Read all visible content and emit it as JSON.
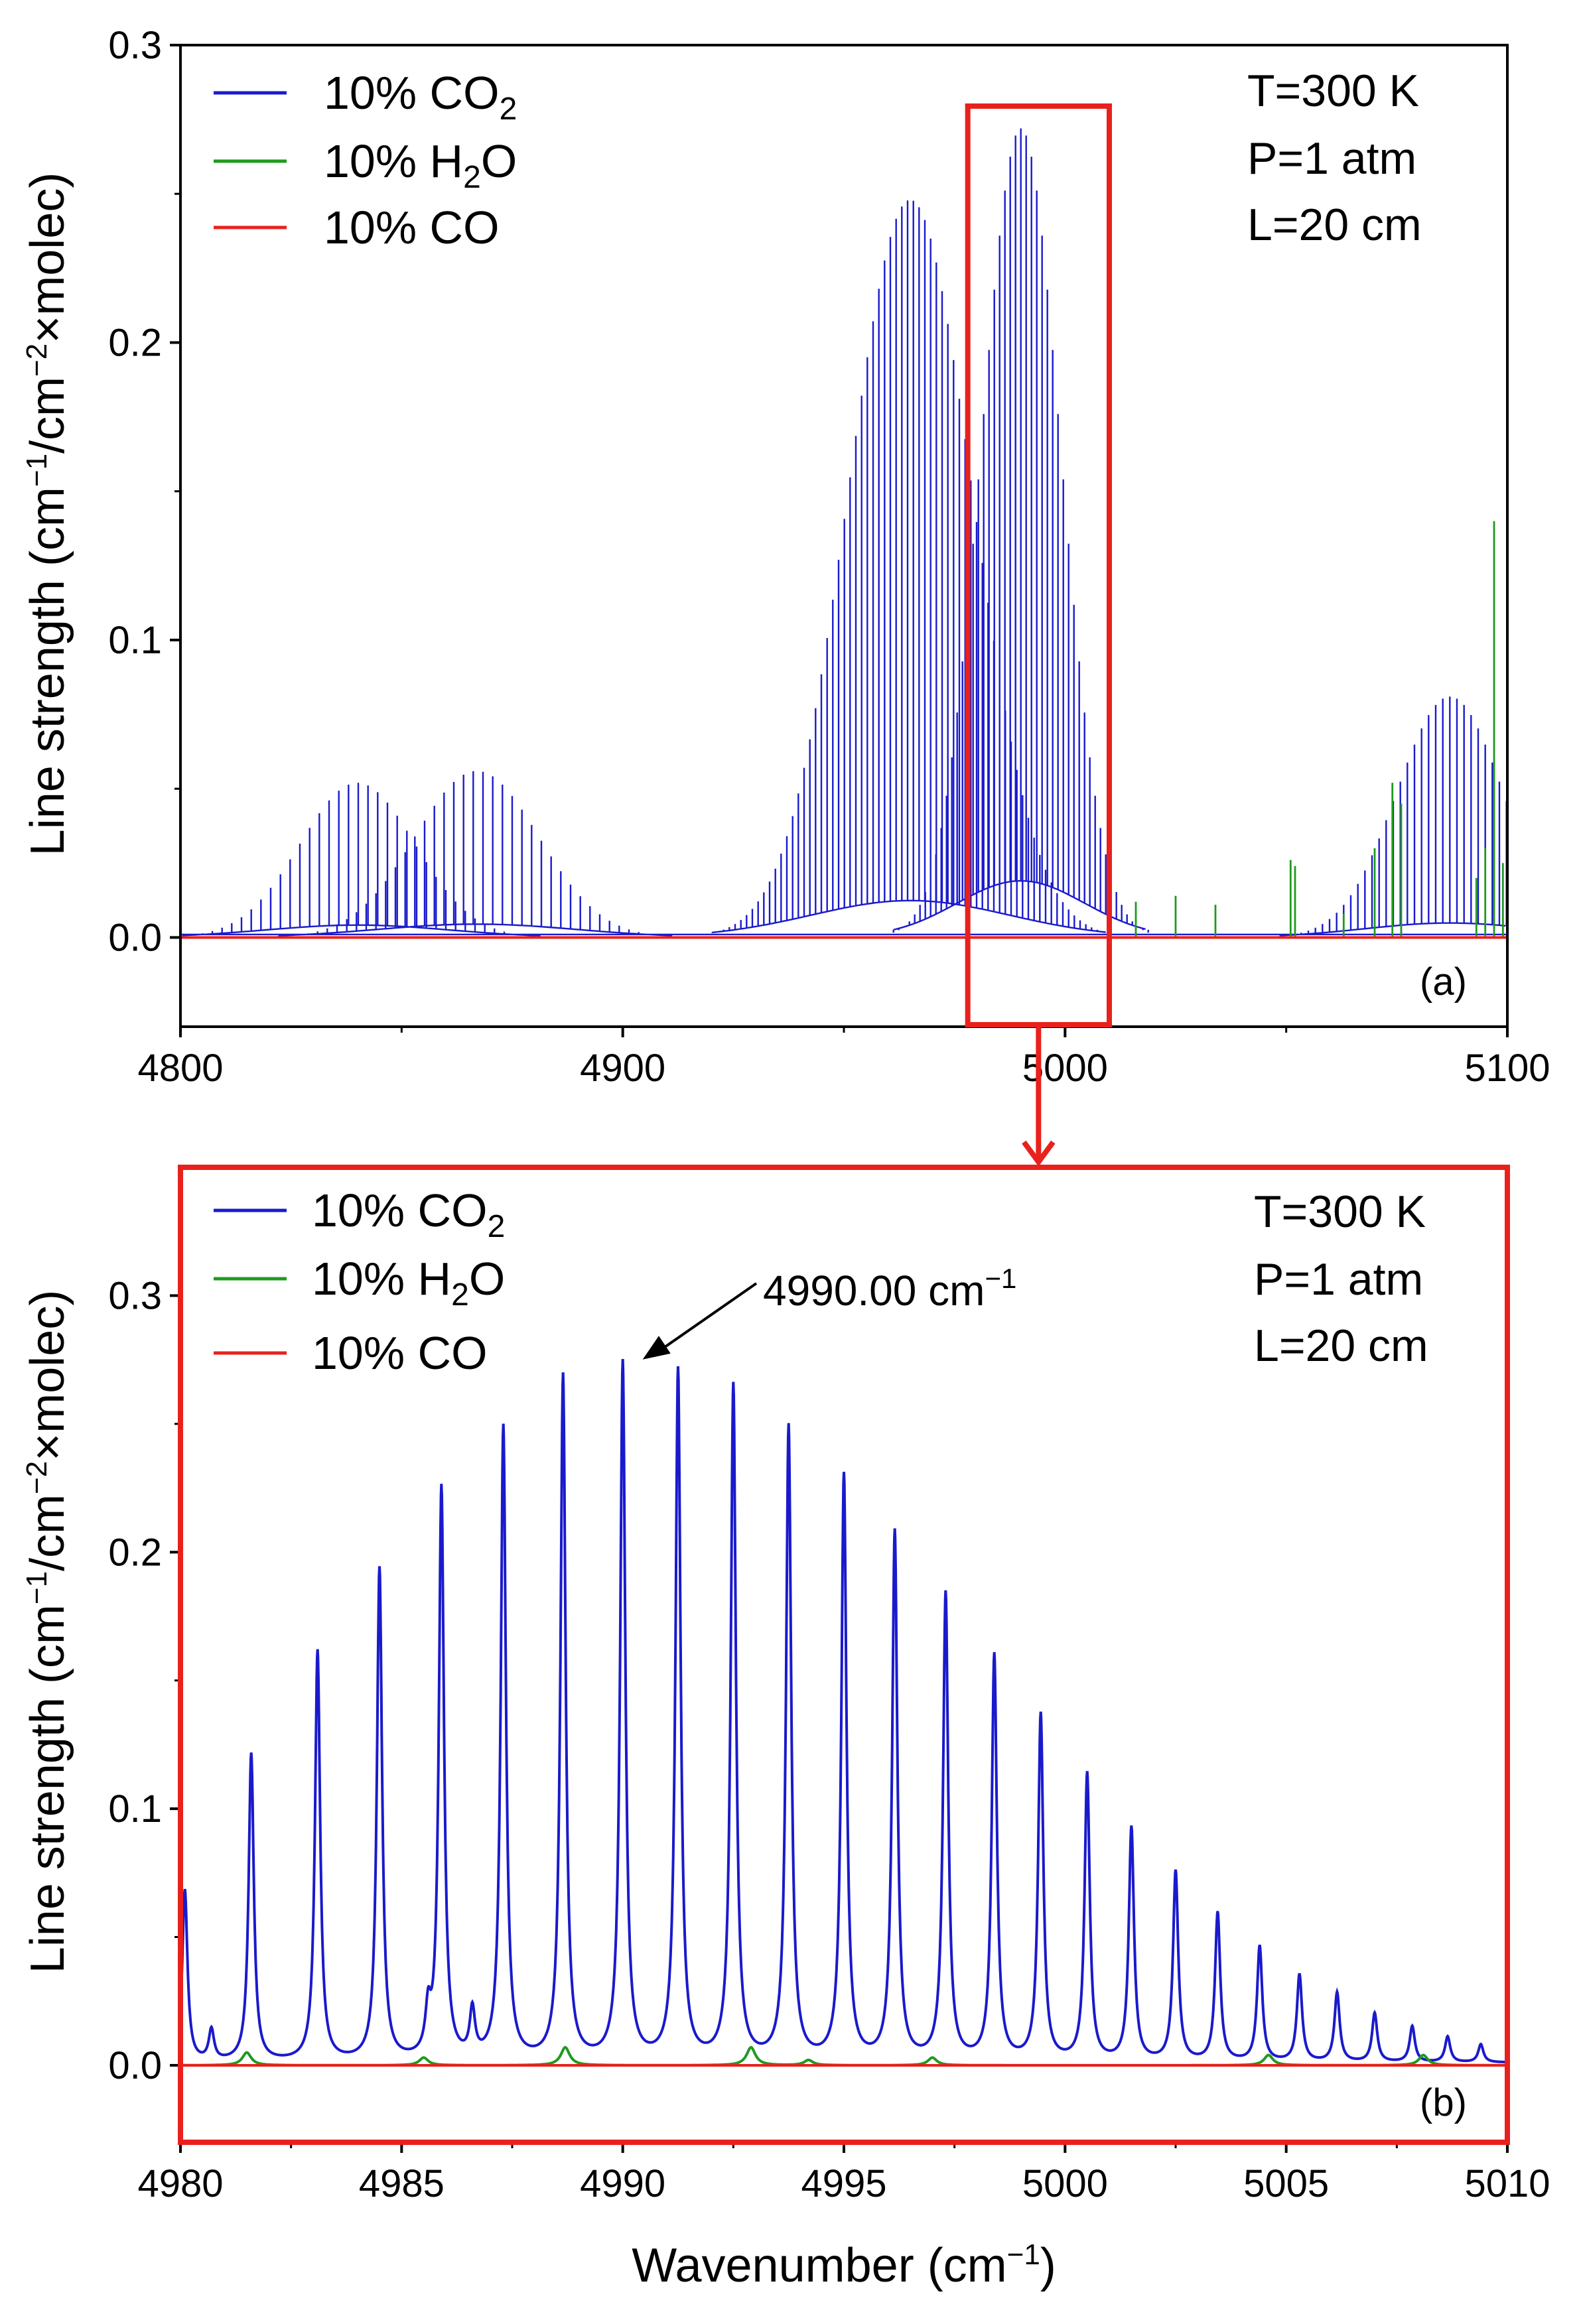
{
  "figure": {
    "ylabel_pre": "Line strength (cm",
    "ylabel_sup1": "−1",
    "ylabel_mid": "/cm",
    "ylabel_sup2": "−2",
    "ylabel_post": "×molec)",
    "xlabel_pre": "Wavenumber (cm",
    "xlabel_sup": "−1",
    "xlabel_post": ")"
  },
  "legend": [
    {
      "pre": "10% CO",
      "sub": "2",
      "post": "",
      "color": "#1a1acc"
    },
    {
      "pre": "10% H",
      "sub": "2",
      "post": "O",
      "color": "#1f9a1f"
    },
    {
      "pre": "10% CO",
      "sub": "",
      "post": "",
      "color": "#e8211d"
    }
  ],
  "conditions": [
    "T=300 K",
    "P=1 atm",
    "L=20 cm"
  ],
  "colors": {
    "co2": "#1a1acc",
    "h2o": "#1f9a1f",
    "co": "#e8211d",
    "highlight": "#e8211d"
  },
  "chart_data": [
    {
      "type": "line",
      "panel": "(a)",
      "xlim": [
        4800,
        5100
      ],
      "ylim": [
        -0.03,
        0.3
      ],
      "xticks": [
        4800,
        4900,
        5000,
        5100
      ],
      "yticks": [
        0.0,
        0.1,
        0.2,
        0.3
      ],
      "ytick_labels": [
        "0.0",
        "0.1",
        "0.2",
        "0.3"
      ],
      "highlight_region": [
        4978,
        5010
      ],
      "co2_bands": [
        {
          "center": 4840,
          "peak": 0.052,
          "sigma": 13,
          "spacing": 2.2,
          "base_frac": 0.08
        },
        {
          "center": 4867,
          "peak": 0.056,
          "sigma": 14,
          "spacing": 2.2,
          "base_frac": 0.08
        },
        {
          "center": 4965,
          "peak": 0.248,
          "sigma": 14,
          "spacing": 1.3,
          "base_frac": 0.05
        },
        {
          "center": 4990,
          "peak": 0.272,
          "sigma": 9,
          "spacing": 1.2,
          "base_frac": 0.07
        },
        {
          "center": 5087,
          "peak": 0.081,
          "sigma": 12,
          "spacing": 1.6,
          "base_frac": 0.06
        }
      ],
      "h2o_lines": [
        {
          "x": 5016,
          "y": 0.012
        },
        {
          "x": 5025,
          "y": 0.014
        },
        {
          "x": 5034,
          "y": 0.011
        },
        {
          "x": 5051,
          "y": 0.026
        },
        {
          "x": 5052,
          "y": 0.024
        },
        {
          "x": 5063,
          "y": 0.008
        },
        {
          "x": 5070,
          "y": 0.03
        },
        {
          "x": 5074,
          "y": 0.052
        },
        {
          "x": 5076,
          "y": 0.045
        },
        {
          "x": 5093,
          "y": 0.02
        },
        {
          "x": 5095,
          "y": 0.03
        },
        {
          "x": 5097,
          "y": 0.14
        },
        {
          "x": 5099,
          "y": 0.025
        }
      ],
      "co_level": 0.0
    },
    {
      "type": "line",
      "panel": "(b)",
      "xlim": [
        4980,
        5010
      ],
      "ylim": [
        -0.03,
        0.35
      ],
      "xticks": [
        4980,
        4985,
        4990,
        4995,
        5000,
        5005,
        5010
      ],
      "yticks": [
        0.0,
        0.1,
        0.2,
        0.3
      ],
      "ytick_labels": [
        "0.0",
        "0.1",
        "0.2",
        "0.3"
      ],
      "co2_peaks": [
        {
          "x": 4980.1,
          "y": 0.067
        },
        {
          "x": 4981.6,
          "y": 0.12
        },
        {
          "x": 4983.1,
          "y": 0.16
        },
        {
          "x": 4984.5,
          "y": 0.192
        },
        {
          "x": 4985.9,
          "y": 0.223
        },
        {
          "x": 4987.3,
          "y": 0.247
        },
        {
          "x": 4988.65,
          "y": 0.267
        },
        {
          "x": 4990.0,
          "y": 0.272
        },
        {
          "x": 4991.25,
          "y": 0.269
        },
        {
          "x": 4992.5,
          "y": 0.263
        },
        {
          "x": 4993.75,
          "y": 0.247
        },
        {
          "x": 4995.0,
          "y": 0.228
        },
        {
          "x": 4996.15,
          "y": 0.206
        },
        {
          "x": 4997.3,
          "y": 0.182
        },
        {
          "x": 4998.4,
          "y": 0.158
        },
        {
          "x": 4999.45,
          "y": 0.135
        },
        {
          "x": 5000.5,
          "y": 0.112
        },
        {
          "x": 5001.5,
          "y": 0.091
        },
        {
          "x": 5002.5,
          "y": 0.074
        },
        {
          "x": 5003.45,
          "y": 0.058
        },
        {
          "x": 5004.4,
          "y": 0.045
        },
        {
          "x": 5005.3,
          "y": 0.034
        },
        {
          "x": 5006.15,
          "y": 0.027
        },
        {
          "x": 5007.0,
          "y": 0.019
        },
        {
          "x": 5007.85,
          "y": 0.014
        },
        {
          "x": 5008.65,
          "y": 0.01
        },
        {
          "x": 5009.4,
          "y": 0.007
        }
      ],
      "co2_minor": [
        {
          "x": 4980.7,
          "y": 0.012
        },
        {
          "x": 4985.6,
          "y": 0.016
        },
        {
          "x": 4986.6,
          "y": 0.018
        }
      ],
      "h2o_lines": [
        {
          "x": 4981.5,
          "y": 0.005
        },
        {
          "x": 4985.5,
          "y": 0.003
        },
        {
          "x": 4988.7,
          "y": 0.007
        },
        {
          "x": 4992.9,
          "y": 0.007
        },
        {
          "x": 4994.2,
          "y": 0.002
        },
        {
          "x": 4997.0,
          "y": 0.003
        },
        {
          "x": 5004.6,
          "y": 0.004
        },
        {
          "x": 5008.1,
          "y": 0.004
        }
      ],
      "co_level": 0.0,
      "annotation": {
        "pre": "4990.00 cm",
        "sup": "−1",
        "x": 4990.0,
        "y": 0.272
      }
    }
  ]
}
